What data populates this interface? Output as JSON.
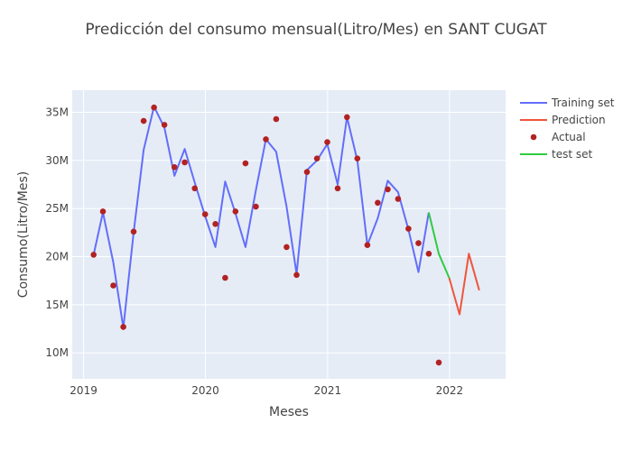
{
  "chart_data": {
    "type": "line",
    "title": "Predicción del consumo mensual(Litro/Mes) en SANT CUGAT",
    "xlabel": "Meses",
    "ylabel": "Consumo(Litro/Mes)",
    "x_ticks": [
      {
        "label": "2019",
        "x": "2019-01-01"
      },
      {
        "label": "2020",
        "x": "2020-01-01"
      },
      {
        "label": "2021",
        "x": "2021-01-01"
      },
      {
        "label": "2022",
        "x": "2022-01-01"
      }
    ],
    "y_ticks": [
      {
        "label": "10M",
        "y": 10000000
      },
      {
        "label": "15M",
        "y": 15000000
      },
      {
        "label": "20M",
        "y": 20000000
      },
      {
        "label": "25M",
        "y": 25000000
      },
      {
        "label": "30M",
        "y": 30000000
      },
      {
        "label": "35M",
        "y": 35000000
      }
    ],
    "xlim": [
      "2018-11-28",
      "2022-06-18"
    ],
    "ylim": [
      7300000,
      37300000
    ],
    "grid": true,
    "legend_position": "top-right outside",
    "series": [
      {
        "name": "Training set",
        "kind": "line",
        "color": "#636efa",
        "points": [
          [
            "2019-01-31",
            20200000
          ],
          [
            "2019-02-28",
            24600000
          ],
          [
            "2019-03-31",
            19400000
          ],
          [
            "2019-04-30",
            12600000
          ],
          [
            "2019-05-31",
            22500000
          ],
          [
            "2019-06-30",
            31100000
          ],
          [
            "2019-07-31",
            35600000
          ],
          [
            "2019-08-31",
            33400000
          ],
          [
            "2019-09-30",
            28400000
          ],
          [
            "2019-10-31",
            31200000
          ],
          [
            "2019-11-30",
            27700000
          ],
          [
            "2019-12-31",
            24200000
          ],
          [
            "2020-01-31",
            21000000
          ],
          [
            "2020-02-29",
            27800000
          ],
          [
            "2020-03-31",
            24500000
          ],
          [
            "2020-04-30",
            21000000
          ],
          [
            "2020-05-31",
            26900000
          ],
          [
            "2020-06-30",
            32200000
          ],
          [
            "2020-07-31",
            30900000
          ],
          [
            "2020-08-31",
            25200000
          ],
          [
            "2020-09-30",
            18200000
          ],
          [
            "2020-10-31",
            29000000
          ],
          [
            "2020-11-30",
            30000000
          ],
          [
            "2020-12-31",
            31700000
          ],
          [
            "2021-01-31",
            27500000
          ],
          [
            "2021-02-28",
            34500000
          ],
          [
            "2021-03-31",
            30000000
          ],
          [
            "2021-04-30",
            21200000
          ],
          [
            "2021-05-31",
            24000000
          ],
          [
            "2021-06-30",
            27900000
          ],
          [
            "2021-07-31",
            26700000
          ],
          [
            "2021-08-31",
            22800000
          ],
          [
            "2021-09-30",
            18400000
          ],
          [
            "2021-10-31",
            24600000
          ]
        ]
      },
      {
        "name": "Prediction",
        "kind": "line",
        "color": "#ef553b",
        "points": [
          [
            "2021-12-31",
            17800000
          ],
          [
            "2022-01-31",
            14000000
          ],
          [
            "2022-02-28",
            20300000
          ],
          [
            "2022-03-31",
            16500000
          ]
        ]
      },
      {
        "name": "Actual",
        "kind": "markers",
        "color": "#b22222",
        "points": [
          [
            "2019-01-31",
            20200000
          ],
          [
            "2019-02-28",
            24700000
          ],
          [
            "2019-03-31",
            17000000
          ],
          [
            "2019-04-30",
            12700000
          ],
          [
            "2019-05-31",
            22600000
          ],
          [
            "2019-06-30",
            34100000
          ],
          [
            "2019-07-31",
            35500000
          ],
          [
            "2019-08-31",
            33700000
          ],
          [
            "2019-09-30",
            29300000
          ],
          [
            "2019-10-31",
            29800000
          ],
          [
            "2019-11-30",
            27100000
          ],
          [
            "2019-12-31",
            24400000
          ],
          [
            "2020-01-31",
            23400000
          ],
          [
            "2020-02-29",
            17800000
          ],
          [
            "2020-03-31",
            24700000
          ],
          [
            "2020-04-30",
            29700000
          ],
          [
            "2020-05-31",
            25200000
          ],
          [
            "2020-06-30",
            32200000
          ],
          [
            "2020-07-31",
            34300000
          ],
          [
            "2020-08-31",
            21000000
          ],
          [
            "2020-09-30",
            18100000
          ],
          [
            "2020-10-31",
            28800000
          ],
          [
            "2020-11-30",
            30200000
          ],
          [
            "2020-12-31",
            31900000
          ],
          [
            "2021-01-31",
            27100000
          ],
          [
            "2021-02-28",
            34500000
          ],
          [
            "2021-03-31",
            30200000
          ],
          [
            "2021-04-30",
            21200000
          ],
          [
            "2021-05-31",
            25600000
          ],
          [
            "2021-06-30",
            27000000
          ],
          [
            "2021-07-31",
            26000000
          ],
          [
            "2021-08-31",
            22900000
          ],
          [
            "2021-09-30",
            21400000
          ],
          [
            "2021-10-31",
            20300000
          ],
          [
            "2021-11-30",
            9000000
          ]
        ]
      },
      {
        "name": "test set",
        "kind": "line",
        "color": "#2ecc40",
        "points": [
          [
            "2021-10-31",
            24600000
          ],
          [
            "2021-11-30",
            20300000
          ],
          [
            "2021-12-31",
            17800000
          ]
        ]
      }
    ]
  }
}
